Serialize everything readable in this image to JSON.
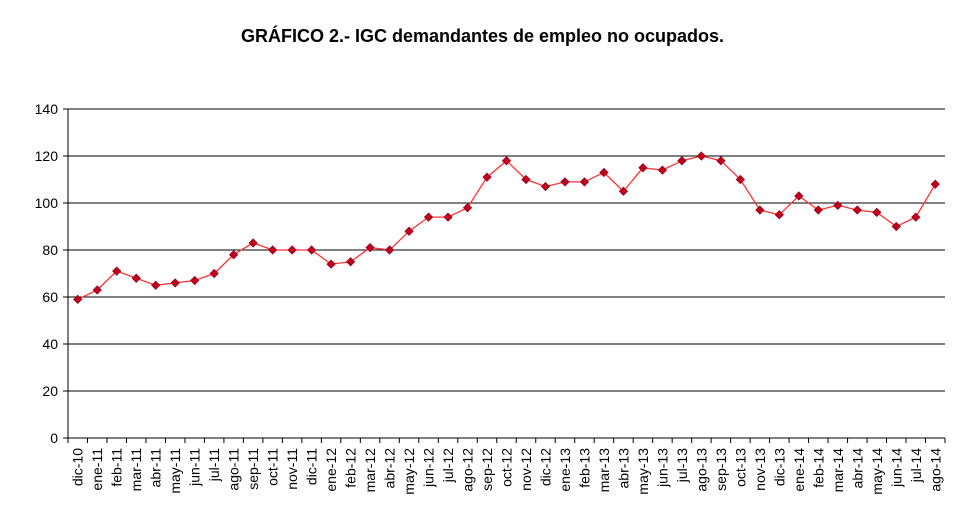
{
  "chart_data": {
    "type": "line",
    "title": "GRÁFICO 2.- IGC demandantes de empleo no ocupados.",
    "xlabel": "",
    "ylabel": "",
    "ylim": [
      0,
      140
    ],
    "yticks": [
      0,
      20,
      40,
      60,
      80,
      100,
      120,
      140
    ],
    "grid": true,
    "legend": "none",
    "colors": {
      "line": "#ff3333",
      "marker": "#c00020",
      "grid": "#000000"
    },
    "categories": [
      "dic-10",
      "ene-11",
      "feb-11",
      "mar-11",
      "abr-11",
      "may-11",
      "jun-11",
      "jul-11",
      "ago-11",
      "sep-11",
      "oct-11",
      "nov-11",
      "dic-11",
      "ene-12",
      "feb-12",
      "mar-12",
      "abr-12",
      "may-12",
      "jun-12",
      "jul-12",
      "ago-12",
      "sep-12",
      "oct-12",
      "nov-12",
      "dic-12",
      "ene-13",
      "feb-13",
      "mar-13",
      "abr-13",
      "may-13",
      "jun-13",
      "jul-13",
      "ago-13",
      "sep-13",
      "oct-13",
      "nov-13",
      "dic-13",
      "ene-14",
      "feb-14",
      "mar-14",
      "abr-14",
      "may-14",
      "jun-14",
      "jul-14",
      "ago-14"
    ],
    "series": [
      {
        "values": [
          59,
          63,
          71,
          68,
          65,
          66,
          67,
          70,
          78,
          83,
          80,
          80,
          80,
          74,
          75,
          81,
          80,
          88,
          94,
          94,
          98,
          111,
          118,
          110,
          107,
          109,
          109,
          113,
          105,
          115,
          114,
          118,
          120,
          118,
          110,
          97,
          95,
          103,
          97,
          99,
          97,
          96,
          90,
          94,
          108
        ]
      }
    ]
  }
}
